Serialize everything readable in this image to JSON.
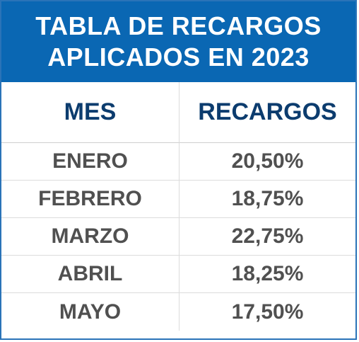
{
  "table": {
    "title_line1": "TABLA DE RECARGOS",
    "title_line2": "APLICADOS EN 2023",
    "headers": [
      "MES",
      "RECARGOS"
    ],
    "rows": [
      {
        "mes": "ENERO",
        "recargo": "20,50%"
      },
      {
        "mes": "FEBRERO",
        "recargo": "18,75%"
      },
      {
        "mes": "MARZO",
        "recargo": "22,75%"
      },
      {
        "mes": "ABRIL",
        "recargo": "18,25%"
      },
      {
        "mes": "MAYO",
        "recargo": "17,50%"
      }
    ],
    "colors": {
      "title_background": "#0a67b3",
      "title_text": "#ffffff",
      "header_text": "#0c3c6e",
      "cell_text": "#505050",
      "border": "#2a73b8"
    }
  }
}
